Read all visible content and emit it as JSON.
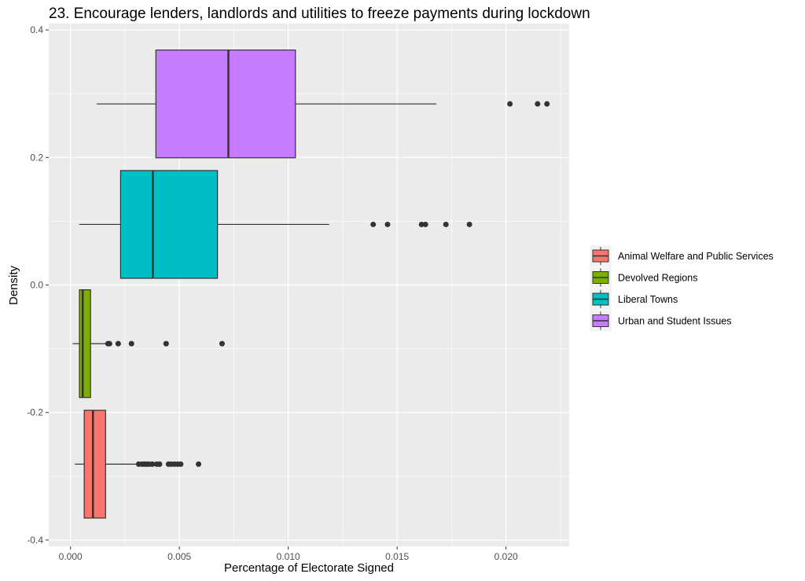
{
  "chart_data": {
    "type": "boxplot",
    "title": "23. Encourage lenders, landlords and utilities to freeze payments during lockdown",
    "xlabel": "Percentage of Electorate Signed",
    "ylabel": "Density",
    "xlim": [
      -0.001,
      0.0229
    ],
    "ylim": [
      -0.41,
      0.41
    ],
    "x_ticks": [
      0,
      0.005,
      0.01,
      0.015,
      0.02
    ],
    "x_tick_labels": [
      "0.000",
      "0.005",
      "0.010",
      "0.015",
      "0.020"
    ],
    "y_ticks": [
      -0.4,
      -0.2,
      0,
      0.2,
      0.4
    ],
    "y_tick_labels": [
      "-0.4",
      "-0.2",
      "0.0",
      "0.2",
      "0.4"
    ],
    "grid": true,
    "legend_position": "right",
    "box_height": 0.169,
    "series": [
      {
        "name": "Animal Welfare and Public Services",
        "color": "#F8766D",
        "y_center": -0.281,
        "whisker_low": 0.0002,
        "q1": 0.00063,
        "median": 0.00103,
        "q3": 0.00161,
        "whisker_high": 0.00305,
        "outliers": [
          0.00313,
          0.00329,
          0.0034,
          0.00351,
          0.00362,
          0.00376,
          0.00396,
          0.00409,
          0.0045,
          0.00463,
          0.00477,
          0.00492,
          0.00506,
          0.00588
        ]
      },
      {
        "name": "Devolved Regions",
        "color": "#7CAE00",
        "y_center": -0.092,
        "whisker_low": 0.0001,
        "q1": 0.00041,
        "median": 0.00056,
        "q3": 0.00092,
        "whisker_high": 0.00161,
        "outliers": [
          0.00172,
          0.00179,
          0.00219,
          0.0028,
          0.00439,
          0.00696
        ]
      },
      {
        "name": "Liberal Towns",
        "color": "#00BFC4",
        "y_center": 0.095,
        "whisker_low": 0.0004,
        "q1": 0.0023,
        "median": 0.00378,
        "q3": 0.00675,
        "whisker_high": 0.01188,
        "outliers": [
          0.0139,
          0.01456,
          0.01612,
          0.0163,
          0.01724,
          0.01832
        ]
      },
      {
        "name": "Urban and Student Issues",
        "color": "#C77CFF",
        "y_center": 0.284,
        "whisker_low": 0.0012,
        "q1": 0.00392,
        "median": 0.00725,
        "q3": 0.01033,
        "whisker_high": 0.0168,
        "outliers": [
          0.02018,
          0.02145,
          0.02188
        ]
      }
    ]
  }
}
